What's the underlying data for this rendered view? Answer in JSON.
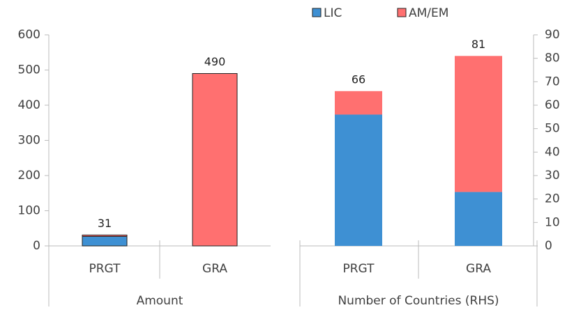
{
  "chart_data": {
    "type": "stacked_bar",
    "categories": [
      "PRGT",
      "GRA",
      "PRGT",
      "GRA"
    ],
    "group_labels": [
      "Amount",
      "Number of Countries (RHS)"
    ],
    "category_axis": [
      "y",
      "y",
      "y2",
      "y2"
    ],
    "series": [
      {
        "name": "LIC",
        "color": "#3e90d3",
        "values": [
          27,
          0,
          56,
          23
        ]
      },
      {
        "name": "AM/EM",
        "color": "#ff7070",
        "values": [
          4,
          490,
          10,
          58
        ]
      }
    ],
    "totals": [
      31,
      490,
      66,
      81
    ],
    "ylim": [
      0,
      600
    ],
    "yticks": [
      0,
      100,
      200,
      300,
      400,
      500,
      600
    ],
    "y2lim": [
      0,
      90
    ],
    "y2ticks": [
      0,
      10,
      20,
      30,
      40,
      50,
      60,
      70,
      80,
      90
    ],
    "legend": "top"
  }
}
